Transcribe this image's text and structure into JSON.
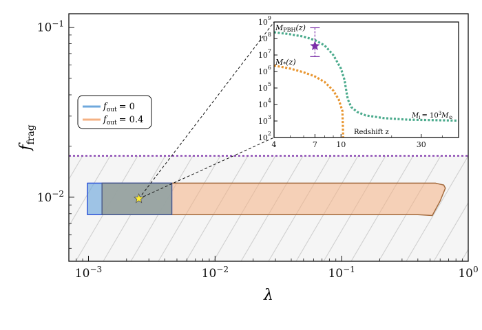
{
  "chart_data": [
    {
      "type": "area",
      "xlabel": "λ",
      "ylabel": "f",
      "ylabel_sub": "frag",
      "xscale": "log",
      "yscale": "log",
      "xlim": [
        0.0007,
        1
      ],
      "ylim": [
        0.0042,
        0.12
      ],
      "x_ticks": [
        {
          "v": 0.001,
          "base": "10",
          "exp": "−3"
        },
        {
          "v": 0.01,
          "base": "10",
          "exp": "−2"
        },
        {
          "v": 0.1,
          "base": "10",
          "exp": "−1"
        },
        {
          "v": 1,
          "base": "10",
          "exp": "0"
        }
      ],
      "y_ticks": [
        {
          "v": 0.01,
          "base": "10",
          "exp": "−2"
        },
        {
          "v": 0.1,
          "base": "10",
          "exp": "−1"
        }
      ],
      "excluded_region": {
        "style": "hatched",
        "ymax": 0.0175
      },
      "threshold_line": {
        "y": 0.0175,
        "style": "dotted",
        "color": "#7b2fa8"
      },
      "series": [
        {
          "name": "f_out = 0",
          "label_var": "f",
          "label_sub": "out",
          "label_rhs": "= 0",
          "color": "#6fa8dc",
          "edge": "#3b5fd9",
          "polygon": [
            [
              0.00098,
              0.0121
            ],
            [
              0.00455,
              0.0121
            ],
            [
              0.00455,
              0.0079
            ],
            [
              0.00098,
              0.0079
            ]
          ]
        },
        {
          "name": "f_out = 0.4",
          "label_var": "f",
          "label_sub": "out",
          "label_rhs": "= 0.4",
          "color": "#f4b183",
          "edge": "#a36a3c",
          "polygon": [
            [
              0.00128,
              0.0121
            ],
            [
              0.55,
              0.0121
            ],
            [
              0.64,
              0.0118
            ],
            [
              0.66,
              0.0113
            ],
            [
              0.6,
              0.0095
            ],
            [
              0.52,
              0.0078
            ],
            [
              0.4,
              0.0079
            ],
            [
              0.0025,
              0.0079
            ],
            [
              0.00128,
              0.0079
            ]
          ]
        }
      ],
      "marker": {
        "shape": "star",
        "x": 0.0025,
        "y": 0.0098,
        "color": "#ffee33",
        "edge": "#555555"
      },
      "legend": "left"
    },
    {
      "type": "line",
      "xlabel": "Redshift z",
      "xscale": "log",
      "yscale": "log",
      "xlim": [
        4,
        50
      ],
      "ylim": [
        100,
        1000000000
      ],
      "x_ticks": [
        4,
        7,
        10,
        30
      ],
      "y_ticks": [
        {
          "v": 100,
          "base": "10",
          "exp": "2"
        },
        {
          "v": 1000,
          "base": "10",
          "exp": "3"
        },
        {
          "v": 10000,
          "base": "10",
          "exp": "4"
        },
        {
          "v": 100000,
          "base": "10",
          "exp": "5"
        },
        {
          "v": 1000000,
          "base": "10",
          "exp": "6"
        },
        {
          "v": 10000000,
          "base": "10",
          "exp": "7"
        },
        {
          "v": 100000000,
          "base": "10",
          "exp": "8"
        },
        {
          "v": 1000000000,
          "base": "10",
          "exp": "9"
        }
      ],
      "annotations": [
        {
          "text": "M",
          "sub": "PBH",
          "rest": "(z)"
        },
        {
          "text": "M",
          "sub": "*",
          "rest": "(z)"
        },
        {
          "text": "M",
          "sub": "i",
          "rest": "= 10",
          "sup": "3",
          "tail": "M",
          "tail_sub": "⊙"
        }
      ],
      "series": [
        {
          "color": "#4aaa8c",
          "points": [
            [
              4,
              240000000.0
            ],
            [
              5,
              180000000.0
            ],
            [
              6,
              130000000.0
            ],
            [
              7,
              80000000.0
            ],
            [
              8,
              38000000.0
            ],
            [
              9,
              10000000.0
            ],
            [
              10,
              1500000.0
            ],
            [
              10.5,
              300000.0
            ],
            [
              10.8,
              50000.0
            ],
            [
              11,
              20000.0
            ],
            [
              11.5,
              7000
            ],
            [
              12.5,
              3500
            ],
            [
              14,
              2200
            ],
            [
              18,
              1500
            ],
            [
              25,
              1200
            ],
            [
              40,
              1100
            ],
            [
              50,
              1050
            ]
          ]
        },
        {
          "color": "#e8952f",
          "points": [
            [
              4,
              2300000.0
            ],
            [
              5,
              1500000.0
            ],
            [
              6,
              900000.0
            ],
            [
              7,
              500000.0
            ],
            [
              8,
              230000.0
            ],
            [
              9,
              70000.0
            ],
            [
              9.7,
              20000.0
            ],
            [
              10.2,
              4000
            ],
            [
              10.3,
              100
            ]
          ]
        }
      ],
      "errorbar": {
        "x": 7,
        "y": 35000000.0,
        "ylow": 8000000.0,
        "yhigh": 450000000.0,
        "color": "#7b2fa8",
        "marker": "star"
      }
    }
  ]
}
